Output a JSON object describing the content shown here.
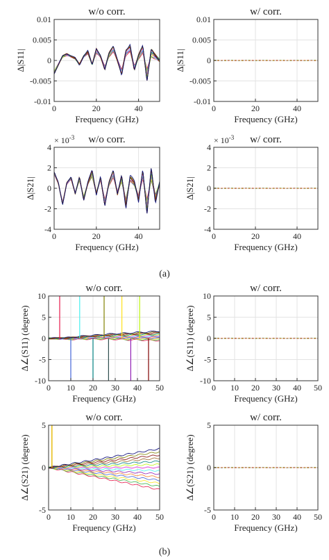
{
  "figure": {
    "sublabels": [
      "(a)",
      "(b)"
    ]
  },
  "chart_data": [
    {
      "type": "line",
      "title": "w/o corr.",
      "xlabel": "Frequency (GHz)",
      "ylabel": "Δ|S11|",
      "xlim": [
        0,
        50
      ],
      "ylim": [
        -0.01,
        0.01
      ],
      "xticks": [
        0,
        20,
        40
      ],
      "yticks": [
        -0.01,
        -0.005,
        0,
        0.005,
        0.01
      ],
      "ytick_labels": [
        "-0.01",
        "-0.005",
        "0",
        "0.005",
        "0.01"
      ],
      "y_exponent": "",
      "grid": true,
      "description_series": "many overlaid multicolored traces",
      "series": [
        {
          "x": [
            0,
            2,
            4,
            6,
            8,
            10,
            12,
            14,
            16,
            18,
            20,
            22,
            24,
            26,
            28,
            30,
            32,
            34,
            36,
            38,
            40,
            42,
            44,
            46,
            48,
            50
          ],
          "values": [
            -0.003,
            -0.001,
            0.001,
            0.0015,
            0.001,
            0.0005,
            -0.001,
            0.001,
            0.002,
            -0.001,
            0.0025,
            0.001,
            -0.002,
            0.0015,
            0.003,
            0.0,
            -0.003,
            0.002,
            0.003,
            -0.002,
            0.001,
            0.003,
            -0.004,
            0.002,
            0.001,
            0.0
          ]
        }
      ]
    },
    {
      "type": "line",
      "title": "w/ corr.",
      "xlabel": "Frequency (GHz)",
      "ylabel": "Δ|S11|",
      "xlim": [
        0,
        50
      ],
      "ylim": [
        -0.01,
        0.01
      ],
      "xticks": [
        0,
        20,
        40
      ],
      "yticks": [
        -0.01,
        -0.005,
        0,
        0.005,
        0.01
      ],
      "ytick_labels": [
        "-0.01",
        "-0.005",
        "0",
        "0.005",
        "0.01"
      ],
      "y_exponent": "",
      "grid": true,
      "series": [
        {
          "x": [
            0,
            10,
            20,
            30,
            40,
            50
          ],
          "values": [
            0,
            0,
            0,
            0,
            0,
            0
          ]
        }
      ]
    },
    {
      "type": "line",
      "title": "w/o corr.",
      "xlabel": "Frequency (GHz)",
      "ylabel": "Δ|S21|",
      "xlim": [
        0,
        50
      ],
      "ylim": [
        -4,
        4
      ],
      "xticks": [
        0,
        20,
        40
      ],
      "yticks": [
        -4,
        -2,
        0,
        2,
        4
      ],
      "ytick_labels": [
        "-4",
        "-2",
        "0",
        "2",
        "4"
      ],
      "y_exponent": "× 10^-3",
      "grid": true,
      "series": [
        {
          "x": [
            0,
            2,
            4,
            6,
            8,
            10,
            12,
            14,
            16,
            18,
            20,
            22,
            24,
            26,
            28,
            30,
            32,
            34,
            36,
            38,
            40,
            42,
            44,
            46,
            48,
            50
          ],
          "values": [
            1.5,
            0.5,
            -1.5,
            0.5,
            1.0,
            -0.5,
            1.0,
            -1.0,
            0.5,
            1.5,
            -0.5,
            1.0,
            -1.5,
            0.5,
            1.5,
            -0.5,
            1.0,
            -1.5,
            1.0,
            0.5,
            -1.0,
            1.5,
            -2.0,
            1.5,
            -1.0,
            0.5
          ]
        }
      ]
    },
    {
      "type": "line",
      "title": "w/ corr.",
      "xlabel": "Frequency (GHz)",
      "ylabel": "Δ|S21|",
      "xlim": [
        0,
        50
      ],
      "ylim": [
        -4,
        4
      ],
      "xticks": [
        0,
        20,
        40
      ],
      "yticks": [
        -4,
        -2,
        0,
        2,
        4
      ],
      "ytick_labels": [
        "-4",
        "-2",
        "0",
        "2",
        "4"
      ],
      "y_exponent": "× 10^-3",
      "grid": true,
      "series": [
        {
          "x": [
            0,
            10,
            20,
            30,
            40,
            50
          ],
          "values": [
            0,
            0,
            0,
            0,
            0,
            0
          ]
        }
      ]
    },
    {
      "type": "line",
      "title": "w/o corr.",
      "xlabel": "Frequency (GHz)",
      "ylabel": "Δ∠(S11) (degree)",
      "xlim": [
        0,
        50
      ],
      "ylim": [
        -10,
        10
      ],
      "xticks": [
        0,
        10,
        20,
        30,
        40,
        50
      ],
      "yticks": [
        -10,
        -5,
        0,
        5,
        10
      ],
      "ytick_labels": [
        "-10",
        "-5",
        "0",
        "5",
        "10"
      ],
      "y_exponent": "",
      "grid": true,
      "series": [
        {
          "x": [
            0,
            5,
            10,
            15,
            20,
            25,
            30,
            35,
            40,
            45,
            50
          ],
          "values": [
            0,
            0,
            0,
            0.2,
            0.3,
            0.4,
            0.5,
            0.5,
            0.6,
            0.6,
            0.7
          ]
        }
      ],
      "spikes_x": [
        5,
        10,
        14,
        20,
        25,
        27,
        33,
        37,
        41,
        45
      ]
    },
    {
      "type": "line",
      "title": "w/ corr.",
      "xlabel": "Frequency (GHz)",
      "ylabel": "Δ∠(S11) (degree)",
      "xlim": [
        0,
        50
      ],
      "ylim": [
        -10,
        10
      ],
      "xticks": [
        0,
        10,
        20,
        30,
        40,
        50
      ],
      "yticks": [
        -10,
        -5,
        0,
        5,
        10
      ],
      "ytick_labels": [
        "-10",
        "-5",
        "0",
        "5",
        "10"
      ],
      "y_exponent": "",
      "grid": true,
      "series": [
        {
          "x": [
            0,
            10,
            20,
            30,
            40,
            50
          ],
          "values": [
            0,
            0,
            0,
            0,
            0,
            0
          ]
        }
      ]
    },
    {
      "type": "line",
      "title": "w/o corr.",
      "xlabel": "Frequency (GHz)",
      "ylabel": "Δ∠(S21) (degree)",
      "xlim": [
        0,
        50
      ],
      "ylim": [
        -5,
        5
      ],
      "xticks": [
        0,
        10,
        20,
        30,
        40,
        50
      ],
      "yticks": [
        -5,
        0,
        5
      ],
      "ytick_labels": [
        "-5",
        "0",
        "5"
      ],
      "y_exponent": "",
      "grid": true,
      "series": [
        {
          "x": [
            0,
            10,
            20,
            30,
            40,
            50
          ],
          "values": [
            0,
            0.3,
            0.6,
            0.9,
            1.2,
            1.5
          ]
        }
      ]
    },
    {
      "type": "line",
      "title": "w/ corr.",
      "xlabel": "Frequency (GHz)",
      "ylabel": "Δ∠(S21) (degree)",
      "xlim": [
        0,
        50
      ],
      "ylim": [
        -5,
        5
      ],
      "xticks": [
        0,
        10,
        20,
        30,
        40,
        50
      ],
      "yticks": [
        -5,
        0,
        5
      ],
      "ytick_labels": [
        "-5",
        "0",
        "5"
      ],
      "y_exponent": "",
      "grid": true,
      "series": [
        {
          "x": [
            0,
            10,
            20,
            30,
            40,
            50
          ],
          "values": [
            0,
            0,
            0,
            0,
            0,
            0
          ]
        }
      ]
    }
  ]
}
